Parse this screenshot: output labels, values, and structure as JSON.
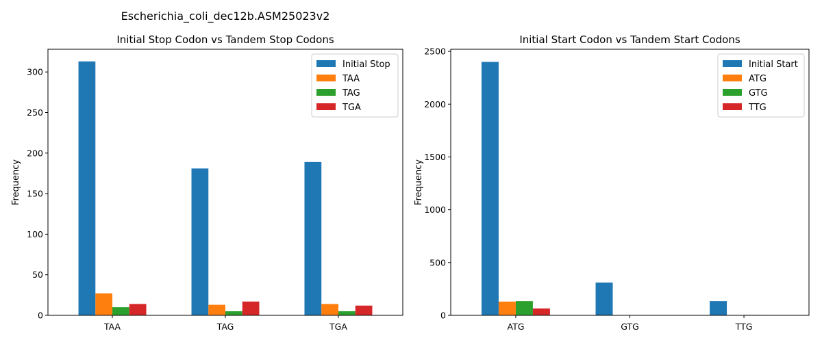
{
  "figure_title": "Escherichia_coli_dec12b.ASM25023v2",
  "chart_data": [
    {
      "type": "bar",
      "title": "Initial Stop Codon vs Tandem Stop Codons",
      "xlabel": "",
      "ylabel": "Frequency",
      "categories": [
        "TAA",
        "TAG",
        "TGA"
      ],
      "series": [
        {
          "name": "Initial Stop",
          "color": "#1f77b4",
          "values": [
            313,
            181,
            189
          ]
        },
        {
          "name": "TAA",
          "color": "#ff7f0e",
          "values": [
            27,
            13,
            14
          ]
        },
        {
          "name": "TAG",
          "color": "#2ca02c",
          "values": [
            10,
            5,
            5
          ]
        },
        {
          "name": "TGA",
          "color": "#d62728",
          "values": [
            14,
            17,
            12
          ]
        }
      ],
      "ylim": [
        0,
        328
      ],
      "yticks": [
        0,
        50,
        100,
        150,
        200,
        250,
        300
      ],
      "legend": "top-right",
      "grid": false
    },
    {
      "type": "bar",
      "title": "Initial Start Codon vs Tandem Start Codons",
      "xlabel": "",
      "ylabel": "Frequency",
      "categories": [
        "ATG",
        "GTG",
        "TTG"
      ],
      "series": [
        {
          "name": "Initial Start",
          "color": "#1f77b4",
          "values": [
            2400,
            310,
            135
          ]
        },
        {
          "name": "ATG",
          "color": "#ff7f0e",
          "values": [
            130,
            2,
            1
          ]
        },
        {
          "name": "GTG",
          "color": "#2ca02c",
          "values": [
            135,
            3,
            4
          ]
        },
        {
          "name": "TTG",
          "color": "#d62728",
          "values": [
            65,
            2,
            1
          ]
        }
      ],
      "ylim": [
        0,
        2520
      ],
      "yticks": [
        0,
        500,
        1000,
        1500,
        2000,
        2500
      ],
      "legend": "top-right",
      "grid": false
    }
  ]
}
